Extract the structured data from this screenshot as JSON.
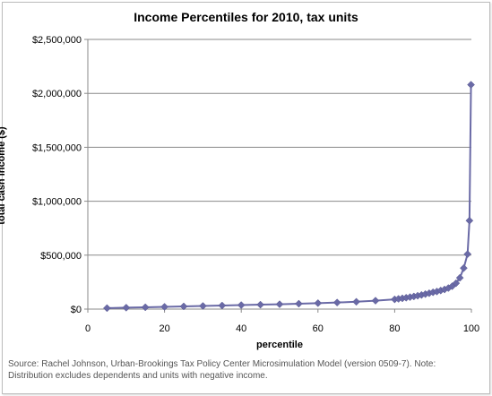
{
  "chart_data": {
    "type": "line",
    "title": "Income Percentiles for 2010, tax units",
    "xlabel": "percentile",
    "ylabel": "total cash income ($)",
    "xlim": [
      0,
      100
    ],
    "ylim": [
      0,
      2500000
    ],
    "x_ticks": [
      0,
      20,
      40,
      60,
      80,
      100
    ],
    "x_tick_labels": [
      "0",
      "20",
      "40",
      "60",
      "80",
      "100"
    ],
    "y_ticks": [
      0,
      500000,
      1000000,
      1500000,
      2000000,
      2500000
    ],
    "y_tick_labels": [
      "$0",
      "$500,000",
      "$1,000,000",
      "$1,500,000",
      "$2,000,000",
      "$2,500,000"
    ],
    "grid": {
      "horizontal": true,
      "vertical": false
    },
    "legend": "none",
    "marker": "diamond",
    "series_color": "#6a6aa6",
    "series": [
      {
        "x": [
          5,
          10,
          15,
          20,
          25,
          30,
          35,
          40,
          45,
          50,
          55,
          60,
          65,
          70,
          75,
          80,
          81,
          82,
          83,
          84,
          85,
          86,
          87,
          88,
          89,
          90,
          91,
          92,
          93,
          94,
          95,
          96,
          97,
          98,
          99,
          99.5,
          99.9
        ],
        "values": [
          9000,
          13000,
          17000,
          21000,
          25000,
          29000,
          33000,
          37000,
          41000,
          45000,
          50000,
          55000,
          61000,
          68000,
          78000,
          90000,
          95000,
          100000,
          105000,
          111000,
          117000,
          124000,
          131000,
          139000,
          147000,
          156000,
          163000,
          172000,
          182000,
          195000,
          212000,
          240000,
          290000,
          380000,
          510000,
          820000,
          2080000
        ]
      }
    ]
  },
  "source_note": "Source: Rachel Johnson, Urban-Brookings Tax Policy Center Microsimulation Model (version 0509-7). Note: Distribution excludes dependents and units with negative income."
}
